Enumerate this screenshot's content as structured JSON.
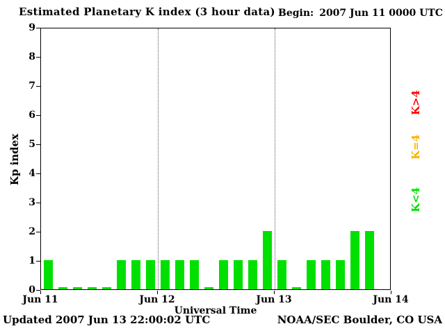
{
  "header": {
    "begin_label": "Begin:",
    "begin_value": "2007 Jun 11 0000 UTC"
  },
  "footer": {
    "updated": "Updated 2007 Jun 13 22:00:02 UTC",
    "source": "NOAA/SEC Boulder, CO USA"
  },
  "chart_data": {
    "type": "bar",
    "title": "Estimated Planetary K index (3 hour data)",
    "xlabel": "Universal Time",
    "ylabel": "Kp index",
    "ylim": [
      0,
      9
    ],
    "yticks": [
      0,
      1,
      2,
      3,
      4,
      5,
      6,
      7,
      8,
      9
    ],
    "x_day_labels": [
      "Jun 11",
      "Jun 12",
      "Jun 13",
      "Jun 14"
    ],
    "gridline_days": [
      "Jun 12",
      "Jun 13"
    ],
    "grid": "dotted vertical lines at day boundaries",
    "legend_position": "right, rotated 90 degrees",
    "bars_per_day": 8,
    "days": 3,
    "bar_color": "#00e000",
    "values": [
      1,
      0,
      0,
      0,
      0,
      1,
      1,
      1,
      1,
      1,
      1,
      0,
      1,
      1,
      1,
      2,
      1,
      0,
      1,
      1,
      1,
      2,
      2,
      null
    ],
    "legend": [
      {
        "label": "K>4",
        "color": "#ff0000"
      },
      {
        "label": "K=4",
        "color": "#ffb000"
      },
      {
        "label": "K<4",
        "color": "#00e000"
      }
    ]
  }
}
